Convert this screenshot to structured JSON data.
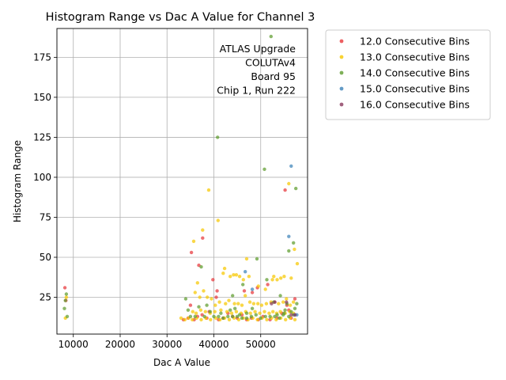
{
  "chart_data": {
    "type": "scatter",
    "title": "Histogram Range vs Dac A Value for Channel 3",
    "xlabel": "Dac A Value",
    "ylabel": "Histogram Range",
    "xlim": [
      6500,
      60000
    ],
    "ylim": [
      2,
      193
    ],
    "xticks": [
      10000,
      20000,
      30000,
      40000,
      50000
    ],
    "yticks": [
      25,
      50,
      75,
      100,
      125,
      150,
      175
    ],
    "grid": true,
    "legend_position": "outside-right",
    "annotation": [
      "ATLAS Upgrade",
      "COLUTAv4",
      "Board 95",
      "Chip 1, Run 222"
    ],
    "series": [
      {
        "name": "12.0 Consecutive Bins",
        "color": "#e8383b",
        "points": [
          [
            8200,
            31
          ],
          [
            8400,
            23
          ],
          [
            35200,
            53
          ],
          [
            36800,
            45
          ],
          [
            37600,
            62
          ],
          [
            39800,
            36
          ],
          [
            40500,
            25
          ],
          [
            40700,
            29
          ],
          [
            46500,
            29
          ],
          [
            48200,
            28
          ],
          [
            49300,
            31
          ],
          [
            51500,
            33
          ],
          [
            53000,
            22
          ],
          [
            55200,
            92
          ],
          [
            55600,
            20
          ],
          [
            56000,
            17
          ],
          [
            57300,
            24
          ],
          [
            35000,
            20
          ],
          [
            35800,
            11
          ],
          [
            36500,
            13
          ],
          [
            37500,
            14
          ],
          [
            38500,
            12
          ],
          [
            41000,
            11
          ],
          [
            42000,
            12
          ],
          [
            44000,
            13
          ],
          [
            45000,
            12
          ],
          [
            47000,
            11
          ],
          [
            48000,
            12
          ],
          [
            49500,
            11
          ],
          [
            50500,
            13
          ],
          [
            52000,
            11
          ],
          [
            53500,
            12
          ],
          [
            33500,
            11
          ],
          [
            34500,
            12
          ],
          [
            39000,
            16
          ],
          [
            43000,
            15
          ],
          [
            46000,
            14
          ],
          [
            54500,
            15
          ],
          [
            56500,
            12
          ]
        ]
      },
      {
        "name": "13.0 Consecutive Bins",
        "color": "#f6c800",
        "points": [
          [
            8300,
            12
          ],
          [
            8500,
            25
          ],
          [
            35700,
            60
          ],
          [
            37600,
            67
          ],
          [
            38900,
            92
          ],
          [
            40900,
            73
          ],
          [
            42000,
            40
          ],
          [
            42300,
            43
          ],
          [
            43500,
            38
          ],
          [
            44200,
            39
          ],
          [
            44800,
            39
          ],
          [
            45500,
            38
          ],
          [
            46300,
            36
          ],
          [
            47000,
            49
          ],
          [
            47500,
            38
          ],
          [
            49500,
            32
          ],
          [
            51000,
            30
          ],
          [
            52500,
            36
          ],
          [
            53500,
            36
          ],
          [
            54300,
            37
          ],
          [
            55000,
            38
          ],
          [
            56000,
            96
          ],
          [
            56500,
            37
          ],
          [
            57200,
            55
          ],
          [
            57800,
            46
          ],
          [
            36000,
            28
          ],
          [
            36500,
            34
          ],
          [
            37000,
            25
          ],
          [
            37800,
            29
          ],
          [
            38600,
            25
          ],
          [
            39500,
            24
          ],
          [
            40300,
            20
          ],
          [
            41200,
            22
          ],
          [
            42500,
            21
          ],
          [
            43200,
            23
          ],
          [
            44400,
            21
          ],
          [
            45200,
            21
          ],
          [
            46000,
            20
          ],
          [
            46700,
            26
          ],
          [
            47700,
            22
          ],
          [
            48500,
            21
          ],
          [
            49400,
            21
          ],
          [
            50200,
            20
          ],
          [
            51200,
            21
          ],
          [
            52200,
            22
          ],
          [
            52800,
            38
          ],
          [
            53800,
            21
          ],
          [
            54800,
            22
          ],
          [
            55500,
            24
          ],
          [
            56300,
            20
          ],
          [
            57000,
            22
          ],
          [
            35500,
            16
          ],
          [
            36200,
            15
          ],
          [
            37200,
            17
          ],
          [
            38200,
            16
          ],
          [
            39200,
            15
          ],
          [
            40200,
            16
          ],
          [
            41500,
            17
          ],
          [
            42800,
            16
          ],
          [
            43800,
            15
          ],
          [
            44800,
            16
          ],
          [
            45800,
            15
          ],
          [
            46800,
            16
          ],
          [
            47800,
            15
          ],
          [
            48800,
            16
          ],
          [
            49800,
            15
          ],
          [
            50800,
            16
          ],
          [
            51800,
            15
          ],
          [
            52600,
            16
          ],
          [
            53400,
            15
          ],
          [
            54200,
            16
          ],
          [
            55200,
            15
          ],
          [
            56200,
            16
          ],
          [
            57000,
            15
          ],
          [
            33000,
            12
          ],
          [
            33800,
            11
          ],
          [
            34600,
            12
          ],
          [
            35400,
            11
          ],
          [
            36300,
            12
          ],
          [
            37300,
            11
          ],
          [
            38300,
            12
          ],
          [
            39300,
            11
          ],
          [
            40400,
            12
          ],
          [
            41300,
            11
          ],
          [
            42300,
            12
          ],
          [
            43300,
            11
          ],
          [
            44300,
            12
          ],
          [
            45300,
            11
          ],
          [
            46300,
            12
          ],
          [
            47300,
            11
          ],
          [
            48300,
            12
          ],
          [
            49300,
            11
          ],
          [
            50300,
            12
          ],
          [
            51300,
            11
          ],
          [
            52300,
            12
          ],
          [
            53300,
            11
          ],
          [
            54300,
            12
          ],
          [
            55300,
            11
          ],
          [
            56300,
            12
          ],
          [
            57300,
            11
          ]
        ]
      },
      {
        "name": "14.0 Consecutive Bins",
        "color": "#5e9c2e",
        "points": [
          [
            8100,
            18
          ],
          [
            8300,
            23
          ],
          [
            8500,
            27
          ],
          [
            8700,
            13
          ],
          [
            34000,
            24
          ],
          [
            34500,
            17
          ],
          [
            36800,
            19
          ],
          [
            37300,
            44
          ],
          [
            38500,
            20
          ],
          [
            39200,
            16
          ],
          [
            40800,
            125
          ],
          [
            41500,
            15
          ],
          [
            43500,
            17
          ],
          [
            44000,
            26
          ],
          [
            44500,
            18
          ],
          [
            45500,
            14
          ],
          [
            46200,
            33
          ],
          [
            47000,
            15
          ],
          [
            48200,
            18
          ],
          [
            49200,
            49
          ],
          [
            50800,
            105
          ],
          [
            51300,
            36
          ],
          [
            52200,
            188
          ],
          [
            52800,
            22
          ],
          [
            53500,
            14
          ],
          [
            54200,
            26
          ],
          [
            54800,
            14
          ],
          [
            55200,
            17
          ],
          [
            55600,
            21
          ],
          [
            56000,
            54
          ],
          [
            56500,
            16
          ],
          [
            57000,
            59
          ],
          [
            57300,
            18
          ],
          [
            57500,
            93
          ],
          [
            57700,
            21
          ],
          [
            35000,
            13
          ],
          [
            36000,
            13
          ],
          [
            38000,
            13
          ],
          [
            40000,
            13
          ],
          [
            42000,
            12
          ],
          [
            44000,
            13
          ],
          [
            46000,
            12
          ],
          [
            48000,
            13
          ],
          [
            50000,
            12
          ],
          [
            52000,
            13
          ],
          [
            54000,
            12
          ],
          [
            56000,
            13
          ],
          [
            57000,
            14
          ],
          [
            41000,
            13
          ],
          [
            43000,
            13
          ],
          [
            45000,
            13
          ],
          [
            47000,
            12
          ],
          [
            49000,
            14
          ],
          [
            51000,
            13
          ],
          [
            53000,
            13
          ],
          [
            55000,
            15
          ]
        ]
      },
      {
        "name": "15.0 Consecutive Bins",
        "color": "#3c82b8",
        "points": [
          [
            46700,
            41
          ],
          [
            48200,
            30
          ],
          [
            56000,
            63
          ],
          [
            56500,
            107
          ],
          [
            57300,
            14
          ],
          [
            57700,
            14
          ]
        ]
      },
      {
        "name": "16.0 Consecutive Bins",
        "color": "#8a3a5e",
        "points": [
          [
            52300,
            21
          ],
          [
            53000,
            22
          ],
          [
            55500,
            22
          ],
          [
            56500,
            14
          ],
          [
            57300,
            14
          ]
        ]
      }
    ]
  }
}
